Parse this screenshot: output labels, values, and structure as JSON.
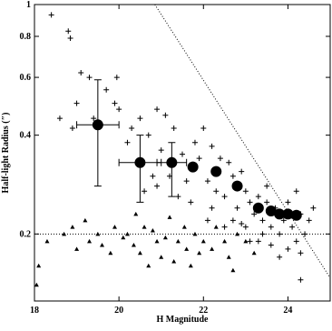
{
  "chart_data": {
    "type": "scatter",
    "x_label": "H Magnitude",
    "y_label": "Half-light Radius (″)",
    "xlim": [
      18,
      25
    ],
    "ylim": [
      0.125,
      1
    ],
    "log_y": true,
    "xticks": [
      18,
      20,
      22,
      24
    ],
    "yticks": [
      0.2,
      0.4,
      0.6,
      0.8,
      1
    ],
    "reference_y": 0.2,
    "limit_line": {
      "x": [
        20.85,
        25
      ],
      "y": [
        1,
        0.147
      ]
    },
    "series": [
      {
        "marker": "plus",
        "color": "#000000",
        "x": [
          18.4,
          18.8,
          18.85,
          19.1,
          19.3,
          19.0,
          18.6,
          18.9,
          19.7,
          19.9,
          20.0,
          19.95,
          20.3,
          20.5,
          20.2,
          20.7,
          20.9,
          21.1,
          21.3,
          21.0,
          20.8,
          20.6,
          21.2,
          21.5,
          21.6,
          21.4,
          21.8,
          21.9,
          22.0,
          22.2,
          22.4,
          22.1,
          22.3,
          22.6,
          22.7,
          22.5,
          22.9,
          23.0,
          22.8,
          23.1,
          23.3,
          23.2,
          23.4,
          23.5,
          23.6,
          23.7,
          23.8,
          23.9,
          24.0,
          24.1,
          24.2,
          24.3,
          24.4,
          24.5,
          23.0,
          23.3,
          23.6,
          24.0,
          24.3,
          22.5,
          22.9,
          23.1,
          23.8,
          24.6,
          24.2,
          23.5,
          22.2,
          21.7,
          21.2,
          20.9,
          19.4,
          24.3,
          23.4,
          22.7,
          22.1
        ],
        "values": [
          0.93,
          0.83,
          0.79,
          0.62,
          0.6,
          0.5,
          0.45,
          0.42,
          0.55,
          0.5,
          0.48,
          0.6,
          0.42,
          0.45,
          0.38,
          0.4,
          0.48,
          0.46,
          0.42,
          0.36,
          0.3,
          0.27,
          0.3,
          0.35,
          0.29,
          0.26,
          0.38,
          0.34,
          0.42,
          0.37,
          0.34,
          0.29,
          0.27,
          0.33,
          0.3,
          0.26,
          0.31,
          0.27,
          0.24,
          0.25,
          0.26,
          0.23,
          0.22,
          0.25,
          0.21,
          0.24,
          0.2,
          0.22,
          0.25,
          0.21,
          0.19,
          0.23,
          0.2,
          0.22,
          0.21,
          0.19,
          0.185,
          0.18,
          0.175,
          0.21,
          0.215,
          0.19,
          0.17,
          0.24,
          0.27,
          0.28,
          0.24,
          0.25,
          0.33,
          0.28,
          0.45,
          0.145,
          0.2,
          0.22,
          0.22
        ]
      },
      {
        "marker": "triangle",
        "color": "#000000",
        "x": [
          18.1,
          18.3,
          18.7,
          18.9,
          19.0,
          19.3,
          19.5,
          19.6,
          19.9,
          20.1,
          20.2,
          20.35,
          20.5,
          20.6,
          20.8,
          20.9,
          21.0,
          21.1,
          21.3,
          21.4,
          21.55,
          21.6,
          21.8,
          21.9,
          22.0,
          22.2,
          22.3,
          22.5,
          22.6,
          22.8,
          23.0,
          21.2,
          20.4,
          19.2,
          18.05,
          21.7,
          22.7,
          20.7,
          23.2,
          19.8
        ],
        "values": [
          0.16,
          0.19,
          0.2,
          0.21,
          0.18,
          0.19,
          0.2,
          0.185,
          0.21,
          0.195,
          0.2,
          0.185,
          0.175,
          0.21,
          0.205,
          0.19,
          0.17,
          0.195,
          0.165,
          0.19,
          0.21,
          0.18,
          0.2,
          0.175,
          0.19,
          0.18,
          0.21,
          0.19,
          0.17,
          0.2,
          0.19,
          0.225,
          0.23,
          0.22,
          0.14,
          0.16,
          0.155,
          0.16,
          0.175,
          0.175
        ]
      },
      {
        "marker": "circle",
        "color": "#000000",
        "x": [
          19.5,
          20.5,
          21.25,
          21.75,
          22.3,
          22.8,
          23.3,
          23.6,
          23.8,
          24.0,
          24.2
        ],
        "values": [
          0.43,
          0.33,
          0.33,
          0.32,
          0.31,
          0.28,
          0.24,
          0.235,
          0.23,
          0.23,
          0.228
        ],
        "x_lower": [
          19.0,
          20.0,
          20.9,
          null,
          null,
          null,
          null,
          null,
          null,
          null,
          null
        ],
        "x_upper": [
          20.0,
          21.0,
          21.6,
          null,
          null,
          null,
          null,
          null,
          null,
          null,
          null
        ],
        "y_lower": [
          0.28,
          0.25,
          0.26,
          null,
          null,
          null,
          null,
          null,
          null,
          null,
          null
        ],
        "y_upper": [
          0.59,
          0.4,
          0.38,
          null,
          null,
          null,
          null,
          null,
          null,
          null,
          null
        ]
      }
    ]
  }
}
